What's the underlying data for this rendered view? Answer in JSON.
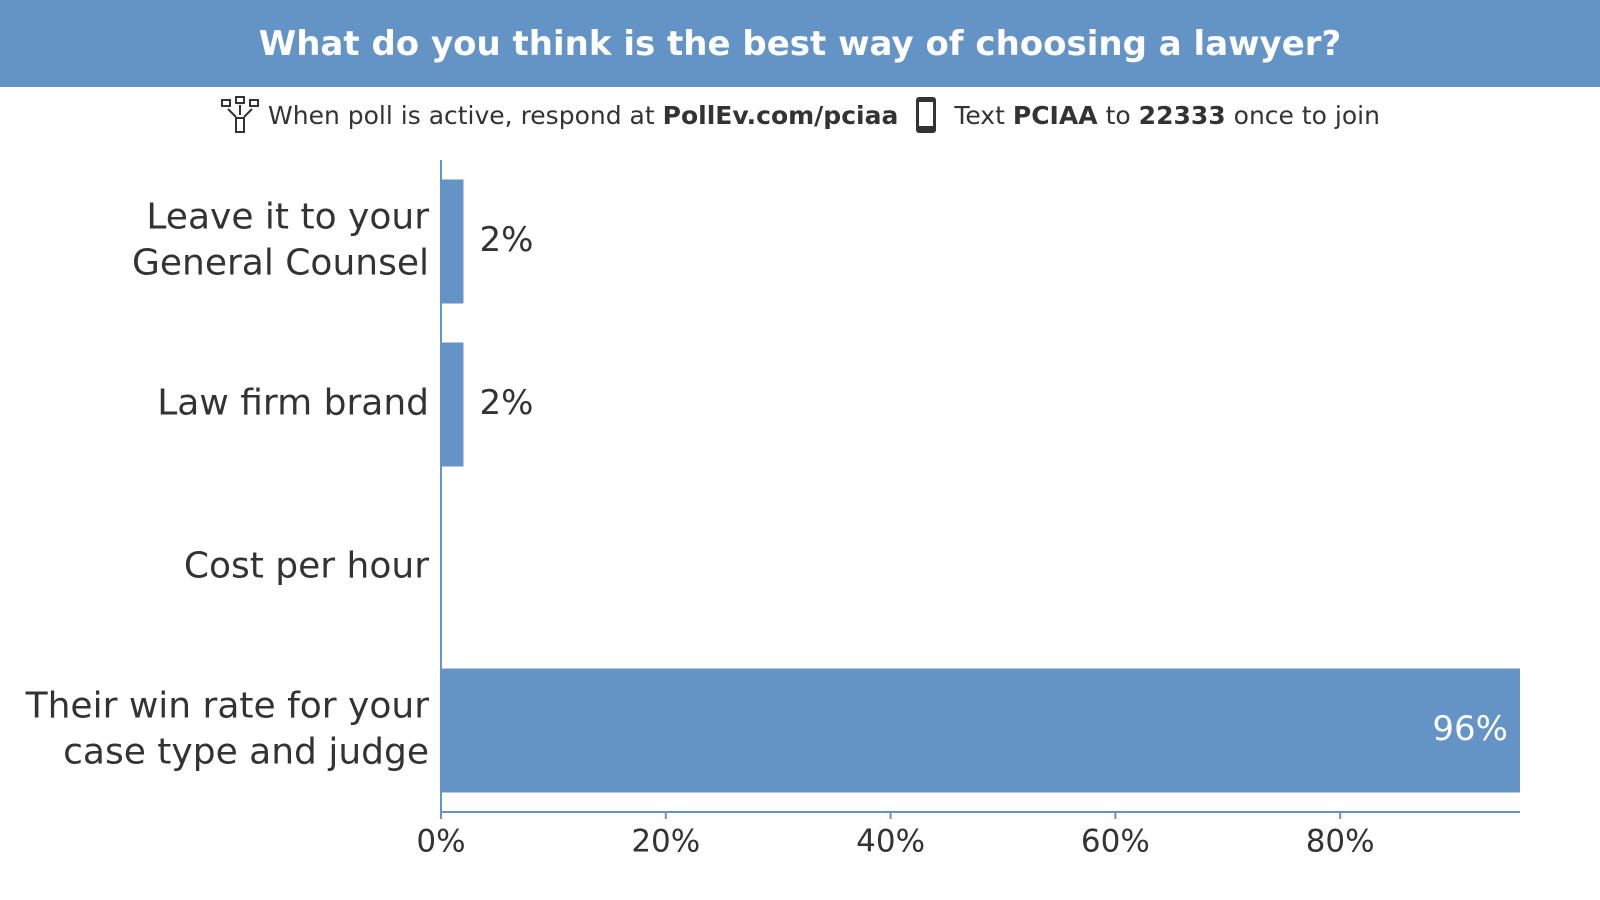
{
  "header": {
    "title": "What do you think is the best way of choosing a lawyer?",
    "instructions": [
      "When poll is active, respond at",
      "PollEv.com/pciaa",
      "Text",
      "PCIAA",
      "to",
      "22333",
      "once to join"
    ]
  },
  "chart_data": {
    "type": "bar",
    "orientation": "horizontal",
    "categories": [
      [
        "Leave it to your",
        "General Counsel"
      ],
      [
        "Law firm brand"
      ],
      [
        "Cost per hour"
      ],
      [
        "Their win rate for your",
        "case type and judge"
      ]
    ],
    "values": [
      2,
      2,
      0,
      96
    ],
    "value_labels": [
      "2%",
      "2%",
      null,
      "96%"
    ],
    "color": "#6394c5",
    "xlim": [
      0,
      96
    ],
    "xticks": [
      {
        "value": 0,
        "label": "0%"
      },
      {
        "value": 20,
        "label": "20%"
      },
      {
        "value": 40,
        "label": "40%"
      },
      {
        "value": 60,
        "label": "60%"
      },
      {
        "value": 80,
        "label": "80%"
      }
    ]
  }
}
